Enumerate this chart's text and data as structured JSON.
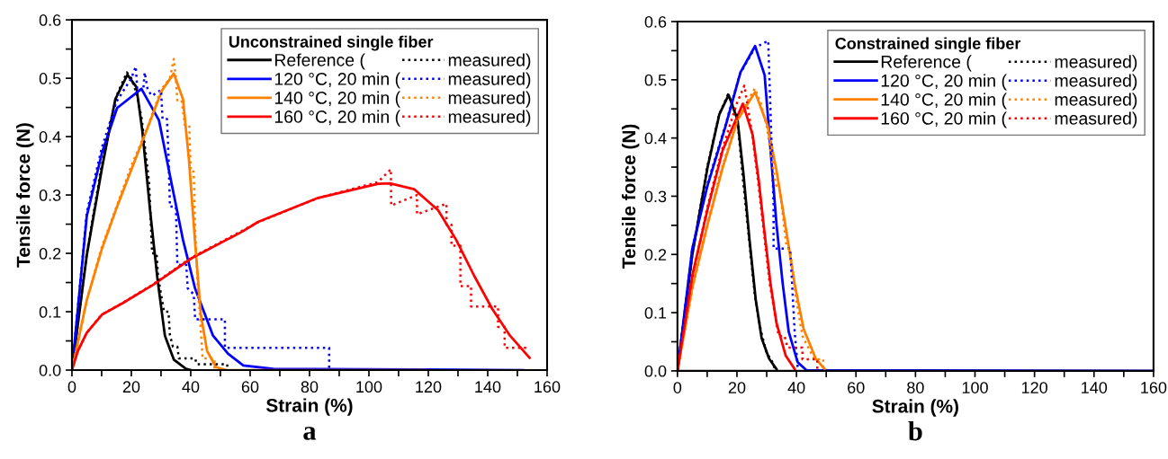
{
  "chart_data": [
    {
      "type": "line",
      "title": "a",
      "xlabel": "Strain (%)",
      "ylabel": "Tensile force (N)",
      "legend_title": "Unconstrained single fiber",
      "legend": "top right",
      "grid": false,
      "marker": "none",
      "xlim": [
        0,
        160
      ],
      "ylim": [
        0,
        0.6
      ],
      "xticks": [
        0,
        {
          "value": 10,
          "label": null
        },
        20,
        {
          "value": 30,
          "label": null
        },
        40,
        {
          "value": 50,
          "label": null
        },
        60,
        {
          "value": 70,
          "label": null
        },
        80,
        {
          "value": 90,
          "label": null
        },
        100,
        {
          "value": 110,
          "label": null
        },
        120,
        {
          "value": 130,
          "label": null
        },
        140,
        {
          "value": 150,
          "label": null
        },
        160
      ],
      "yticks": [
        {
          "value": 0,
          "label": "0.0"
        },
        {
          "value": 0.05,
          "label": null
        },
        0.1,
        {
          "value": 0.15,
          "label": null
        },
        0.2,
        {
          "value": 0.25,
          "label": null
        },
        0.3,
        {
          "value": 0.35,
          "label": null
        },
        0.4,
        {
          "value": 0.45,
          "label": null
        },
        0.5,
        {
          "value": 0.55,
          "label": null
        },
        0.6
      ],
      "series": [
        {
          "name": "Reference (",
          "color": "#000000",
          "line_style": "solid",
          "x": [
            0,
            5,
            10.1,
            14.6,
            18.7,
            21.7,
            23.7,
            26.3,
            28.8,
            31.3,
            34.3,
            38.4,
            40
          ],
          "values": [
            0,
            0.197,
            0.346,
            0.464,
            0.506,
            0.485,
            0.41,
            0.274,
            0.156,
            0.059,
            0.018,
            0.002,
            0
          ]
        },
        {
          "name": "120 °C, 20 min (",
          "color": "#0000ff",
          "line_style": "solid",
          "x": [
            0,
            5,
            10.1,
            15.2,
            23.4,
            29.3,
            33.3,
            37.4,
            41.4,
            47.5,
            52.6,
            57.7,
            67.8,
            152
          ],
          "values": [
            0,
            0.264,
            0.372,
            0.449,
            0.482,
            0.428,
            0.326,
            0.223,
            0.141,
            0.059,
            0.028,
            0.008,
            0.002,
            0
          ]
        },
        {
          "name": "140 °C, 20 min (",
          "color": "#ff8000",
          "line_style": "solid",
          "x": [
            0,
            5,
            10.1,
            15.2,
            20.2,
            25.3,
            30.3,
            34.3,
            37.4,
            39.4,
            41.4,
            43.4,
            45.5,
            48.5,
            52,
            119
          ],
          "values": [
            0,
            0.12,
            0.208,
            0.28,
            0.346,
            0.413,
            0.479,
            0.508,
            0.464,
            0.36,
            0.223,
            0.095,
            0.033,
            0.005,
            0,
            0
          ]
        },
        {
          "name": "160 °C, 20 min (",
          "color": "#ff0000",
          "line_style": "solid",
          "x": [
            0,
            2,
            5,
            10.1,
            17.2,
            27.3,
            40.4,
            57.6,
            62.7,
            82.9,
            103.1,
            107.1,
            115.2,
            123.3,
            129.4,
            135.4,
            141.5,
            147.5,
            154.1
          ],
          "values": [
            0,
            0.033,
            0.064,
            0.095,
            0.115,
            0.146,
            0.192,
            0.238,
            0.254,
            0.295,
            0.319,
            0.32,
            0.31,
            0.274,
            0.223,
            0.162,
            0.105,
            0.059,
            0.021
          ]
        },
        {
          "name": "measured)",
          "color": "#000000",
          "line_style": "dotted",
          "x": [
            0,
            5,
            10,
            15,
            18.5,
            20,
            22,
            23.5,
            26,
            27,
            28.5,
            29,
            31,
            32.5,
            33,
            34,
            35.5,
            36,
            41.5,
            42,
            52.3,
            52.3
          ],
          "values": [
            0,
            0.2,
            0.35,
            0.47,
            0.51,
            0.5,
            0.47,
            0.43,
            0.32,
            0.2,
            0.2,
            0.16,
            0.1,
            0.1,
            0.06,
            0.04,
            0.04,
            0.02,
            0.02,
            0.01,
            0.01,
            0
          ]
        },
        {
          "name": "measured)",
          "color": "#0000ff",
          "line_style": "dotted",
          "x": [
            0,
            5,
            10,
            15,
            20,
            21.5,
            22,
            24,
            24.5,
            25.5,
            27,
            30,
            30.5,
            32,
            32.5,
            33,
            35,
            35.5,
            38.5,
            39,
            41,
            41.5,
            44.4,
            51.5,
            51.5,
            86.6,
            86.6
          ],
          "values": [
            0,
            0.27,
            0.38,
            0.46,
            0.5,
            0.52,
            0.48,
            0.48,
            0.51,
            0.48,
            0.47,
            0.48,
            0.43,
            0.43,
            0.37,
            0.28,
            0.28,
            0.18,
            0.18,
            0.14,
            0.13,
            0.087,
            0.087,
            0.087,
            0.038,
            0.038,
            0
          ]
        },
        {
          "name": "measured)",
          "color": "#ff8000",
          "line_style": "dotted",
          "x": [
            0,
            5,
            10,
            15,
            20,
            25,
            30,
            33,
            34.3,
            35,
            35.5,
            36.5,
            37,
            38,
            39.5,
            40,
            41,
            41.5,
            42.5,
            43,
            44,
            48,
            48
          ],
          "values": [
            0,
            0.12,
            0.21,
            0.28,
            0.35,
            0.41,
            0.48,
            0.5,
            0.533,
            0.5,
            0.46,
            0.46,
            0.46,
            0.42,
            0.42,
            0.34,
            0.34,
            0.24,
            0.13,
            0.1,
            0.02,
            0.02,
            0
          ]
        },
        {
          "name": "measured)",
          "color": "#ff0000",
          "line_style": "dotted",
          "x": [
            0,
            2,
            5,
            10,
            17,
            27,
            40,
            57,
            63,
            83,
            103,
            107.4,
            107.5,
            116.2,
            116.2,
            126.1,
            126.1,
            127.8,
            127.8,
            130.8,
            130.8,
            134.4,
            134.4,
            143.5,
            143.5,
            145.7,
            145.7,
            153.6
          ],
          "values": [
            0,
            0.033,
            0.064,
            0.095,
            0.115,
            0.146,
            0.192,
            0.238,
            0.254,
            0.295,
            0.322,
            0.344,
            0.282,
            0.3,
            0.267,
            0.285,
            0.249,
            0.249,
            0.213,
            0.213,
            0.144,
            0.144,
            0.109,
            0.109,
            0.074,
            0.074,
            0.038,
            0.038
          ]
        }
      ]
    },
    {
      "type": "line",
      "title": "b",
      "xlabel": "Strain (%)",
      "ylabel": "Tensile force (N)",
      "legend_title": "Constrained single fiber",
      "legend": "top right",
      "grid": false,
      "marker": "none",
      "xlim": [
        0,
        160
      ],
      "ylim": [
        0,
        0.6
      ],
      "xticks": [
        0,
        {
          "value": 10,
          "label": null
        },
        20,
        {
          "value": 30,
          "label": null
        },
        40,
        {
          "value": 50,
          "label": null
        },
        60,
        {
          "value": 70,
          "label": null
        },
        80,
        {
          "value": 90,
          "label": null
        },
        100,
        {
          "value": 110,
          "label": null
        },
        120,
        {
          "value": 130,
          "label": null
        },
        140,
        {
          "value": 150,
          "label": null
        },
        160
      ],
      "yticks": [
        {
          "value": 0,
          "label": "0.0"
        },
        {
          "value": 0.05,
          "label": null
        },
        0.1,
        {
          "value": 0.15,
          "label": null
        },
        0.2,
        {
          "value": 0.25,
          "label": null
        },
        0.3,
        {
          "value": 0.35,
          "label": null
        },
        0.4,
        {
          "value": 0.45,
          "label": null
        },
        0.5,
        {
          "value": 0.55,
          "label": null
        },
        0.6
      ],
      "series": [
        {
          "name": "Reference (",
          "color": "#000000",
          "line_style": "solid",
          "x": [
            0,
            5,
            10.1,
            14.1,
            17.2,
            20.2,
            22.2,
            24.2,
            26.3,
            28.3,
            30.8,
            33.3
          ],
          "values": [
            0,
            0.2,
            0.349,
            0.441,
            0.474,
            0.431,
            0.338,
            0.226,
            0.123,
            0.056,
            0.021,
            0.003
          ]
        },
        {
          "name": "120 °C, 20 min (",
          "color": "#0000ff",
          "line_style": "solid",
          "x": [
            0,
            5,
            10.1,
            16.2,
            21.2,
            26.1,
            29.3,
            31.3,
            33.3,
            35.4,
            37.4,
            40.4,
            43.4,
            160
          ],
          "values": [
            0,
            0.21,
            0.318,
            0.421,
            0.513,
            0.558,
            0.508,
            0.379,
            0.251,
            0.149,
            0.067,
            0.015,
            0.001,
            0
          ]
        },
        {
          "name": "140 °C, 20 min (",
          "color": "#ff8000",
          "line_style": "solid",
          "x": [
            0,
            5,
            10.1,
            15.2,
            20.2,
            26.1,
            30.3,
            33.3,
            36.4,
            39.4,
            42.4,
            46.5,
            49.5
          ],
          "values": [
            0,
            0.144,
            0.251,
            0.349,
            0.431,
            0.479,
            0.421,
            0.344,
            0.246,
            0.149,
            0.072,
            0.021,
            0.003
          ]
        },
        {
          "name": "160 °C, 20 min (",
          "color": "#ff0000",
          "line_style": "solid",
          "x": [
            0,
            5,
            10.1,
            15.2,
            22,
            25.3,
            27.3,
            29.3,
            31.3,
            33.3,
            36.4,
            39.4
          ],
          "values": [
            0,
            0.164,
            0.277,
            0.379,
            0.459,
            0.405,
            0.328,
            0.236,
            0.149,
            0.082,
            0.026,
            0.003
          ]
        },
        {
          "name": "measured)",
          "color": "#000000",
          "line_style": "dotted",
          "x": [
            0,
            5,
            10,
            14,
            17,
            20,
            22,
            24,
            26,
            28,
            30,
            31.5,
            33
          ],
          "values": [
            0,
            0.2,
            0.35,
            0.44,
            0.475,
            0.44,
            0.33,
            0.23,
            0.13,
            0.07,
            0.03,
            0.02,
            0
          ]
        },
        {
          "name": "measured)",
          "color": "#0000ff",
          "line_style": "dotted",
          "x": [
            0,
            5,
            10,
            16,
            21,
            26,
            30.5,
            32.3,
            32.3,
            32.5,
            37.9,
            39.4,
            40.4,
            41
          ],
          "values": [
            0,
            0.21,
            0.32,
            0.42,
            0.51,
            0.555,
            0.567,
            0.287,
            0.21,
            0.21,
            0.21,
            0.067,
            0.008,
            0
          ]
        },
        {
          "name": "measured)",
          "color": "#ff8000",
          "line_style": "dotted",
          "x": [
            0,
            5,
            10,
            15,
            20,
            26,
            28,
            30,
            33,
            34.5,
            36.5,
            38,
            40,
            42,
            44,
            46,
            49,
            49
          ],
          "values": [
            0,
            0.14,
            0.25,
            0.35,
            0.43,
            0.485,
            0.46,
            0.42,
            0.32,
            0.31,
            0.22,
            0.2,
            0.12,
            0.06,
            0.04,
            0.02,
            0.02,
            0
          ]
        },
        {
          "name": "measured)",
          "color": "#ff0000",
          "line_style": "dotted",
          "x": [
            0,
            5,
            10,
            15,
            20,
            22.5,
            25,
            27,
            29,
            31,
            33,
            34,
            36,
            37,
            42,
            42,
            47,
            47
          ],
          "values": [
            0,
            0.16,
            0.28,
            0.38,
            0.46,
            0.49,
            0.41,
            0.33,
            0.24,
            0.15,
            0.09,
            0.06,
            0.06,
            0.04,
            0.04,
            0.02,
            0.02,
            0
          ]
        }
      ]
    }
  ]
}
